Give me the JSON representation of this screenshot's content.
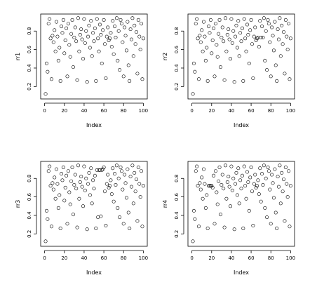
{
  "chart_data": [
    {
      "type": "scatter",
      "xlabel": "Index",
      "ylabel": "rr1",
      "xlim": [
        0,
        100
      ],
      "ylim": [
        0.1,
        0.95
      ],
      "xticks": [
        0,
        20,
        40,
        60,
        80,
        100
      ],
      "yticks": [
        0.2,
        0.4,
        0.6,
        0.8
      ],
      "series": [
        {
          "x": [
            1,
            2,
            3,
            4,
            5,
            6,
            7,
            8,
            9,
            10,
            11,
            12,
            13,
            14,
            15,
            16,
            17,
            18,
            19,
            20,
            21,
            22,
            23,
            24,
            25,
            26,
            27,
            28,
            29,
            30,
            31,
            32,
            33,
            34,
            35,
            36,
            37,
            38,
            39,
            40,
            41,
            42,
            43,
            44,
            45,
            46,
            47,
            48,
            49,
            50,
            51,
            52,
            53,
            54,
            55,
            56,
            57,
            58,
            59,
            60,
            61,
            62,
            63,
            64,
            65,
            66,
            67,
            68,
            69,
            70,
            71,
            72,
            73,
            74,
            75,
            76,
            77,
            78,
            79,
            80,
            81,
            82,
            83,
            84,
            85,
            86,
            87,
            88,
            89,
            90,
            91,
            92,
            93,
            94,
            95,
            96,
            97,
            98,
            99,
            100
          ],
          "y": [
            0.12,
            0.45,
            0.36,
            0.88,
            0.93,
            0.72,
            0.28,
            0.75,
            0.68,
            0.81,
            0.58,
            0.9,
            0.74,
            0.48,
            0.62,
            0.26,
            0.85,
            0.78,
            0.92,
            0.56,
            0.7,
            0.83,
            0.31,
            0.88,
            0.65,
            0.52,
            0.77,
            0.92,
            0.41,
            0.73,
            0.84,
            0.69,
            0.27,
            0.94,
            0.58,
            0.76,
            0.82,
            0.71,
            0.5,
            0.93,
            0.67,
            0.8,
            0.25,
            0.74,
            0.86,
            0.62,
            0.91,
            0.53,
            0.78,
            0.69,
            0.83,
            0.26,
            0.93,
            0.72,
            0.58,
            0.87,
            0.76,
            0.45,
            0.81,
            0.92,
            0.66,
            0.29,
            0.74,
            0.84,
            0.7,
            0.72,
            0.78,
            0.63,
            0.91,
            0.55,
            0.85,
            0.73,
            0.94,
            0.48,
            0.8,
            0.38,
            0.92,
            0.88,
            0.68,
            0.31,
            0.84,
            0.75,
            0.59,
            0.9,
            0.43,
            0.26,
            0.82,
            0.71,
            0.94,
            0.53,
            0.86,
            0.66,
            0.79,
            0.34,
            0.92,
            0.74,
            0.6,
            0.88,
            0.28,
            0.72
          ]
        }
      ]
    },
    {
      "type": "scatter",
      "xlabel": "Index",
      "ylabel": "rr2",
      "xlim": [
        0,
        100
      ],
      "ylim": [
        0.1,
        0.95
      ],
      "xticks": [
        0,
        20,
        40,
        60,
        80,
        100
      ],
      "yticks": [
        0.2,
        0.4,
        0.6,
        0.8
      ],
      "series": [
        {
          "x": [
            1,
            2,
            3,
            4,
            5,
            6,
            7,
            8,
            9,
            10,
            11,
            12,
            13,
            14,
            15,
            16,
            17,
            18,
            19,
            20,
            21,
            22,
            23,
            24,
            25,
            26,
            27,
            28,
            29,
            30,
            31,
            32,
            33,
            34,
            35,
            36,
            37,
            38,
            39,
            40,
            41,
            42,
            43,
            44,
            45,
            46,
            47,
            48,
            49,
            50,
            51,
            52,
            53,
            54,
            55,
            56,
            57,
            58,
            59,
            60,
            61,
            62,
            63,
            64,
            65,
            66,
            67,
            68,
            69,
            70,
            71,
            72,
            73,
            74,
            75,
            76,
            77,
            78,
            79,
            80,
            81,
            82,
            83,
            84,
            85,
            86,
            87,
            88,
            89,
            90,
            91,
            92,
            93,
            94,
            95,
            96,
            97,
            98,
            99,
            100
          ],
          "y": [
            0.12,
            0.45,
            0.36,
            0.88,
            0.93,
            0.72,
            0.28,
            0.75,
            0.68,
            0.81,
            0.58,
            0.9,
            0.74,
            0.48,
            0.62,
            0.26,
            0.85,
            0.78,
            0.92,
            0.56,
            0.7,
            0.83,
            0.31,
            0.88,
            0.65,
            0.52,
            0.77,
            0.92,
            0.41,
            0.73,
            0.84,
            0.69,
            0.27,
            0.94,
            0.58,
            0.76,
            0.82,
            0.71,
            0.5,
            0.93,
            0.67,
            0.8,
            0.25,
            0.74,
            0.86,
            0.62,
            0.91,
            0.53,
            0.78,
            0.69,
            0.83,
            0.26,
            0.93,
            0.72,
            0.58,
            0.87,
            0.76,
            0.45,
            0.81,
            0.92,
            0.66,
            0.29,
            0.74,
            0.84,
            0.7,
            0.72,
            0.73,
            0.63,
            0.91,
            0.73,
            0.85,
            0.73,
            0.94,
            0.48,
            0.8,
            0.38,
            0.92,
            0.88,
            0.68,
            0.31,
            0.84,
            0.75,
            0.59,
            0.9,
            0.43,
            0.26,
            0.82,
            0.71,
            0.94,
            0.53,
            0.86,
            0.66,
            0.79,
            0.34,
            0.92,
            0.74,
            0.6,
            0.88,
            0.28,
            0.72
          ]
        }
      ]
    },
    {
      "type": "scatter",
      "xlabel": "Index",
      "ylabel": "rr3",
      "xlim": [
        0,
        100
      ],
      "ylim": [
        0.1,
        0.95
      ],
      "xticks": [
        0,
        20,
        40,
        60,
        80,
        100
      ],
      "yticks": [
        0.2,
        0.4,
        0.6,
        0.8
      ],
      "series": [
        {
          "x": [
            1,
            2,
            3,
            4,
            5,
            6,
            7,
            8,
            9,
            10,
            11,
            12,
            13,
            14,
            15,
            16,
            17,
            18,
            19,
            20,
            21,
            22,
            23,
            24,
            25,
            26,
            27,
            28,
            29,
            30,
            31,
            32,
            33,
            34,
            35,
            36,
            37,
            38,
            39,
            40,
            41,
            42,
            43,
            44,
            45,
            46,
            47,
            48,
            49,
            50,
            51,
            52,
            53,
            54,
            55,
            56,
            57,
            58,
            59,
            60,
            61,
            62,
            63,
            64,
            65,
            66,
            67,
            68,
            69,
            70,
            71,
            72,
            73,
            74,
            75,
            76,
            77,
            78,
            79,
            80,
            81,
            82,
            83,
            84,
            85,
            86,
            87,
            88,
            89,
            90,
            91,
            92,
            93,
            94,
            95,
            96,
            97,
            98,
            99,
            100
          ],
          "y": [
            0.12,
            0.45,
            0.36,
            0.88,
            0.93,
            0.72,
            0.28,
            0.75,
            0.68,
            0.81,
            0.58,
            0.9,
            0.74,
            0.48,
            0.62,
            0.26,
            0.85,
            0.78,
            0.92,
            0.56,
            0.7,
            0.83,
            0.31,
            0.88,
            0.65,
            0.52,
            0.77,
            0.92,
            0.41,
            0.73,
            0.84,
            0.69,
            0.27,
            0.94,
            0.58,
            0.76,
            0.82,
            0.71,
            0.5,
            0.93,
            0.67,
            0.8,
            0.25,
            0.74,
            0.86,
            0.62,
            0.91,
            0.53,
            0.78,
            0.69,
            0.83,
            0.26,
            0.89,
            0.38,
            0.89,
            0.89,
            0.39,
            0.89,
            0.9,
            0.92,
            0.66,
            0.29,
            0.74,
            0.84,
            0.7,
            0.72,
            0.78,
            0.63,
            0.91,
            0.55,
            0.85,
            0.73,
            0.94,
            0.48,
            0.8,
            0.38,
            0.92,
            0.88,
            0.68,
            0.31,
            0.84,
            0.75,
            0.59,
            0.9,
            0.43,
            0.26,
            0.82,
            0.71,
            0.94,
            0.53,
            0.86,
            0.66,
            0.79,
            0.34,
            0.92,
            0.74,
            0.6,
            0.88,
            0.28,
            0.72
          ]
        }
      ]
    },
    {
      "type": "scatter",
      "xlabel": "Index",
      "ylabel": "rr4",
      "xlim": [
        0,
        100
      ],
      "ylim": [
        0.1,
        0.95
      ],
      "xticks": [
        0,
        20,
        40,
        60,
        80,
        100
      ],
      "yticks": [
        0.2,
        0.4,
        0.6,
        0.8
      ],
      "series": [
        {
          "x": [
            1,
            2,
            3,
            4,
            5,
            6,
            7,
            8,
            9,
            10,
            11,
            12,
            13,
            14,
            15,
            16,
            17,
            18,
            19,
            20,
            21,
            22,
            23,
            24,
            25,
            26,
            27,
            28,
            29,
            30,
            31,
            32,
            33,
            34,
            35,
            36,
            37,
            38,
            39,
            40,
            41,
            42,
            43,
            44,
            45,
            46,
            47,
            48,
            49,
            50,
            51,
            52,
            53,
            54,
            55,
            56,
            57,
            58,
            59,
            60,
            61,
            62,
            63,
            64,
            65,
            66,
            67,
            68,
            69,
            70,
            71,
            72,
            73,
            74,
            75,
            76,
            77,
            78,
            79,
            80,
            81,
            82,
            83,
            84,
            85,
            86,
            87,
            88,
            89,
            90,
            91,
            92,
            93,
            94,
            95,
            96,
            97,
            98,
            99,
            100
          ],
          "y": [
            0.12,
            0.45,
            0.36,
            0.88,
            0.93,
            0.72,
            0.28,
            0.75,
            0.68,
            0.81,
            0.58,
            0.9,
            0.74,
            0.48,
            0.62,
            0.26,
            0.72,
            0.72,
            0.72,
            0.72,
            0.7,
            0.83,
            0.31,
            0.88,
            0.65,
            0.52,
            0.77,
            0.92,
            0.41,
            0.73,
            0.84,
            0.69,
            0.27,
            0.94,
            0.58,
            0.76,
            0.82,
            0.71,
            0.5,
            0.93,
            0.67,
            0.8,
            0.25,
            0.74,
            0.86,
            0.62,
            0.91,
            0.53,
            0.78,
            0.69,
            0.83,
            0.26,
            0.93,
            0.72,
            0.58,
            0.87,
            0.76,
            0.45,
            0.81,
            0.92,
            0.66,
            0.29,
            0.74,
            0.84,
            0.7,
            0.72,
            0.78,
            0.63,
            0.91,
            0.55,
            0.85,
            0.73,
            0.94,
            0.48,
            0.8,
            0.38,
            0.92,
            0.88,
            0.68,
            0.31,
            0.84,
            0.75,
            0.59,
            0.9,
            0.43,
            0.26,
            0.82,
            0.71,
            0.94,
            0.53,
            0.86,
            0.66,
            0.79,
            0.34,
            0.92,
            0.74,
            0.6,
            0.88,
            0.28,
            0.72
          ]
        }
      ]
    }
  ]
}
